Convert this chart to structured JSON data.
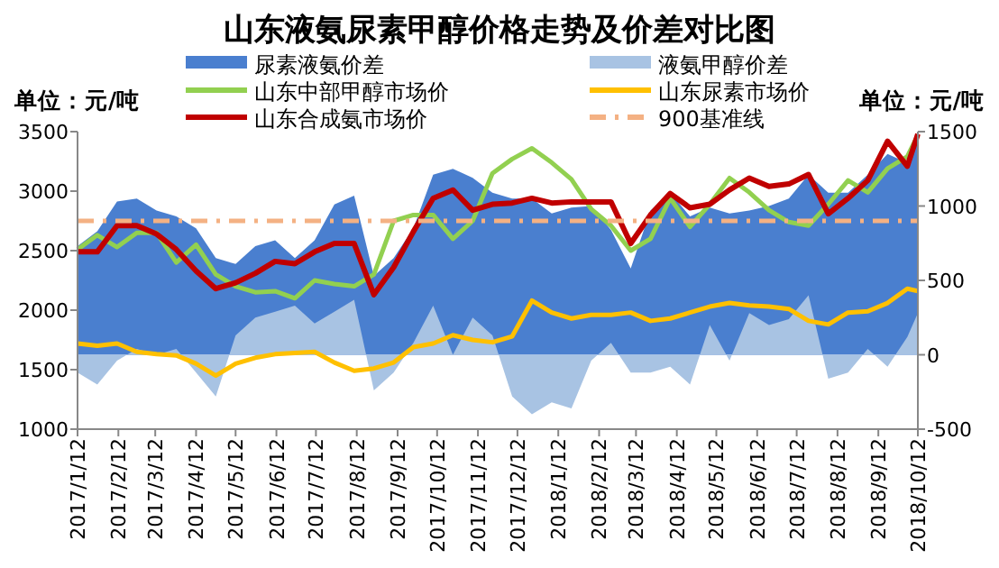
{
  "chart_data": {
    "type": "line",
    "title": "山东液氨尿素甲醇价格走势及价差对比图",
    "ylabel": "单位：元/吨",
    "y2label": "单位：元/吨",
    "legend": "top",
    "x": [
      "2017-01-12",
      "2017-01-27",
      "2017-02-11",
      "2017-02-26",
      "2017-03-13",
      "2017-03-28",
      "2017-04-12",
      "2017-04-27",
      "2017-05-12",
      "2017-05-27",
      "2017-06-11",
      "2017-06-26",
      "2017-07-11",
      "2017-07-26",
      "2017-08-10",
      "2017-08-25",
      "2017-09-09",
      "2017-09-24",
      "2017-10-09",
      "2017-10-24",
      "2017-11-08",
      "2017-11-23",
      "2017-12-08",
      "2017-12-23",
      "2018-01-07",
      "2018-01-22",
      "2018-02-06",
      "2018-02-21",
      "2018-03-08",
      "2018-03-23",
      "2018-04-07",
      "2018-04-22",
      "2018-05-07",
      "2018-05-22",
      "2018-06-06",
      "2018-06-21",
      "2018-07-06",
      "2018-07-21",
      "2018-08-05",
      "2018-08-20",
      "2018-09-04",
      "2018-09-19",
      "2018-10-04",
      "2018-10-12"
    ],
    "xlim": [
      "2017-01-12",
      "2018-10-12"
    ],
    "xticks": [
      {
        "value": "2017-01-12",
        "label": "2017/1/12"
      },
      {
        "value": "2017-02-12",
        "label": "2017/2/12"
      },
      {
        "value": "2017-03-12",
        "label": "2017/3/12"
      },
      {
        "value": "2017-04-12",
        "label": "2017/4/12"
      },
      {
        "value": "2017-05-12",
        "label": "2017/5/12"
      },
      {
        "value": "2017-06-12",
        "label": "2017/6/12"
      },
      {
        "value": "2017-07-12",
        "label": "2017/7/12"
      },
      {
        "value": "2017-08-12",
        "label": "2017/8/12"
      },
      {
        "value": "2017-09-12",
        "label": "2017/9/12"
      },
      {
        "value": "2017-10-12",
        "label": "2017/10/12"
      },
      {
        "value": "2017-11-12",
        "label": "2017/11/12"
      },
      {
        "value": "2017-12-12",
        "label": "2017/12/12"
      },
      {
        "value": "2018-01-12",
        "label": "2018/1/12"
      },
      {
        "value": "2018-02-12",
        "label": "2018/2/12"
      },
      {
        "value": "2018-03-12",
        "label": "2018/3/12"
      },
      {
        "value": "2018-04-12",
        "label": "2018/4/12"
      },
      {
        "value": "2018-05-12",
        "label": "2018/5/12"
      },
      {
        "value": "2018-06-12",
        "label": "2018/6/12"
      },
      {
        "value": "2018-07-12",
        "label": "2018/7/12"
      },
      {
        "value": "2018-08-12",
        "label": "2018/8/12"
      },
      {
        "value": "2018-09-12",
        "label": "2018/9/12"
      },
      {
        "value": "2018-10-12",
        "label": "2018/10/12"
      }
    ],
    "ylim": [
      1000,
      3500
    ],
    "yticks": [
      1000,
      1500,
      2000,
      2500,
      3000,
      3500
    ],
    "y2lim": [
      -500,
      1500
    ],
    "y2ticks": [
      -500,
      0,
      500,
      1000,
      1500
    ],
    "series": [
      {
        "name": "尿素液氨价差",
        "type": "area",
        "axis": "y2",
        "color": "#4a7fcf",
        "values": [
          730,
          830,
          1030,
          1050,
          970,
          930,
          850,
          650,
          610,
          730,
          770,
          650,
          770,
          1010,
          1070,
          530,
          650,
          850,
          1210,
          1250,
          1190,
          1090,
          1050,
          1050,
          950,
          990,
          1000,
          840,
          580,
          970,
          1090,
          930,
          990,
          950,
          970,
          1000,
          1050,
          1210,
          1090,
          1090,
          1210,
          1350,
          1290,
          1490
        ]
      },
      {
        "name": "液氨甲醇价差",
        "type": "area",
        "axis": "y2",
        "color": "#a8c3e3",
        "values": [
          -120,
          -200,
          -40,
          40,
          0,
          40,
          -120,
          -280,
          130,
          250,
          290,
          330,
          210,
          290,
          370,
          -240,
          -120,
          80,
          330,
          0,
          250,
          130,
          -280,
          -400,
          -320,
          -360,
          -40,
          80,
          -120,
          -120,
          -80,
          -200,
          200,
          -40,
          280,
          200,
          240,
          400,
          -160,
          -120,
          40,
          -80,
          120,
          280
        ]
      },
      {
        "name": "山东中部甲醇市场价",
        "color": "#92d050",
        "values": [
          2510,
          2630,
          2530,
          2650,
          2650,
          2400,
          2550,
          2300,
          2200,
          2150,
          2160,
          2100,
          2250,
          2220,
          2200,
          2300,
          2750,
          2800,
          2800,
          2600,
          2750,
          3150,
          3270,
          3360,
          3240,
          3100,
          2850,
          2710,
          2500,
          2600,
          2940,
          2700,
          2890,
          3110,
          2990,
          2840,
          2740,
          2710,
          2890,
          3090,
          2990,
          3190,
          3290,
          3470
        ]
      },
      {
        "name": "山东尿素市场价",
        "color": "#ffc000",
        "values": [
          1720,
          1700,
          1720,
          1650,
          1630,
          1620,
          1550,
          1450,
          1550,
          1600,
          1630,
          1640,
          1650,
          1560,
          1490,
          1510,
          1560,
          1690,
          1720,
          1790,
          1750,
          1730,
          1780,
          2080,
          1980,
          1930,
          1960,
          1960,
          1980,
          1910,
          1930,
          1980,
          2030,
          2060,
          2040,
          2030,
          2010,
          1910,
          1880,
          1980,
          1990,
          2060,
          2180,
          2160
        ]
      },
      {
        "name": "山东合成氨市场价",
        "color": "#c00000",
        "values": [
          2490,
          2490,
          2710,
          2710,
          2640,
          2510,
          2330,
          2180,
          2230,
          2310,
          2410,
          2390,
          2490,
          2560,
          2560,
          2130,
          2360,
          2660,
          2940,
          3010,
          2840,
          2890,
          2900,
          2940,
          2900,
          2910,
          2910,
          2910,
          2560,
          2800,
          2980,
          2860,
          2890,
          3010,
          3110,
          3040,
          3060,
          3140,
          2810,
          2940,
          3090,
          3420,
          3210,
          3480
        ]
      }
    ],
    "ref_lines": [
      {
        "axis": "y2",
        "value": 900,
        "label": "900基准线",
        "color": "#f4b183",
        "line_style": "dashdot"
      }
    ]
  }
}
